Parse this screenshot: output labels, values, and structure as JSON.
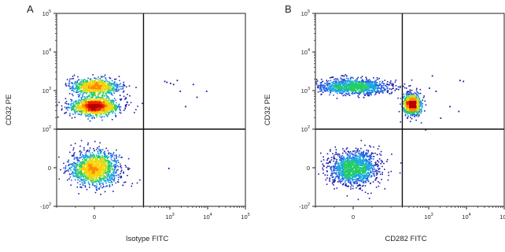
{
  "chart_data": [
    {
      "type": "scatter",
      "panel_label": "A",
      "xlabel": "Isotype FITC",
      "ylabel": "CD32 PE",
      "scale": "biexponential",
      "xlim": [
        -100,
        100000
      ],
      "ylim": [
        -100,
        100000
      ],
      "x_ticks": [
        "0",
        "10^3",
        "10^4",
        "10^5"
      ],
      "y_ticks": [
        "-10^2",
        "0",
        "10^2",
        "10^3",
        "10^4",
        "10^5"
      ],
      "quadrant_gate": {
        "x": 200,
        "y": 100
      },
      "populations": [
        {
          "name": "",
          "x_center": 0,
          "y_center": 0,
          "spread_x": 60,
          "spread_y": 40,
          "relative_density": 1.0
        },
        {
          "name": "",
          "x_center": 0,
          "y_center": 400,
          "spread_x": 60,
          "spread_y": 250,
          "relative_density": 0.9
        },
        {
          "name": "",
          "x_center": 0,
          "y_center": 1300,
          "spread_x": 60,
          "spread_y": 700,
          "relative_density": 0.6
        }
      ],
      "outliers": [
        {
          "x": 700,
          "y": 1800
        },
        {
          "x": 1000,
          "y": 1600
        },
        {
          "x": 1200,
          "y": 1500
        },
        {
          "x": 1500,
          "y": 1900
        },
        {
          "x": 1800,
          "y": 1000
        },
        {
          "x": 2500,
          "y": 400
        },
        {
          "x": 4000,
          "y": 1500
        },
        {
          "x": 5000,
          "y": 700
        },
        {
          "x": 9000,
          "y": 1000
        },
        {
          "x": 800,
          "y": 1700
        },
        {
          "x": 900,
          "y": 0
        }
      ]
    },
    {
      "type": "scatter",
      "panel_label": "B",
      "xlabel": "CD282 FITC",
      "ylabel": "CD32 PE",
      "scale": "biexponential",
      "xlim": [
        -100,
        100000
      ],
      "ylim": [
        -100,
        100000
      ],
      "x_ticks": [
        "0",
        "10^3",
        "10^4",
        "10^5"
      ],
      "y_ticks": [
        "-10^2",
        "0",
        "10^2",
        "10^3",
        "10^4",
        "10^5"
      ],
      "quadrant_gate": {
        "x": 200,
        "y": 100
      },
      "populations": [
        {
          "name": "",
          "x_center": 0,
          "y_center": 0,
          "spread_x": 60,
          "spread_y": 40,
          "relative_density": 1.0
        },
        {
          "name": "",
          "x_center": 0,
          "y_center": 1300,
          "spread_x": 90,
          "spread_y": 700,
          "relative_density": 0.8
        },
        {
          "name": "",
          "x_center": 350,
          "y_center": 450,
          "spread_x": 200,
          "spread_y": 300,
          "relative_density": 0.8
        }
      ],
      "outliers": [
        {
          "x": 800,
          "y": 100
        },
        {
          "x": 1000,
          "y": 1200
        },
        {
          "x": 1500,
          "y": 1000
        },
        {
          "x": 2000,
          "y": 200
        },
        {
          "x": 3500,
          "y": 400
        },
        {
          "x": 6500,
          "y": 1900
        },
        {
          "x": 8000,
          "y": 1800
        },
        {
          "x": 6000,
          "y": 300
        },
        {
          "x": 1200,
          "y": 2500
        }
      ]
    }
  ]
}
